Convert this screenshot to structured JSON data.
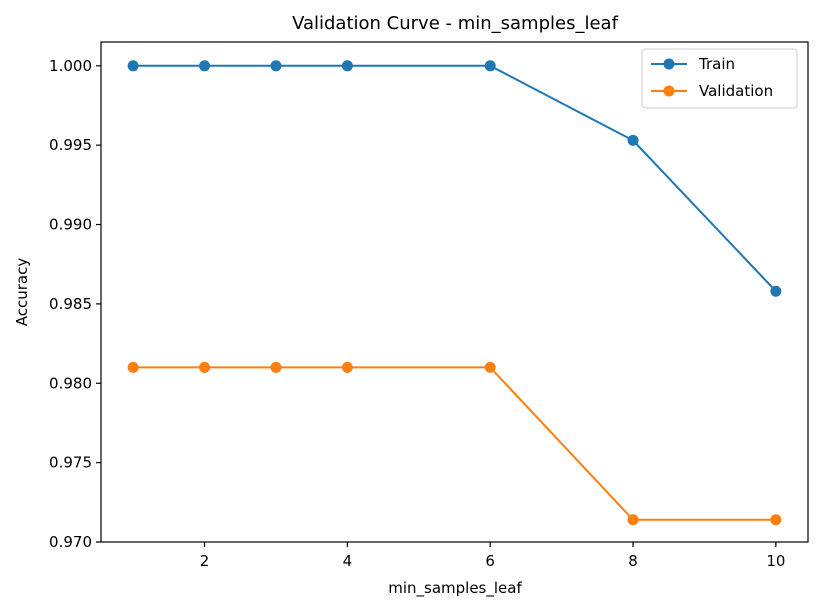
{
  "chart_data": {
    "type": "line",
    "title": "Validation Curve - min_samples_leaf",
    "xlabel": "min_samples_leaf",
    "ylabel": "Accuracy",
    "xlim": [
      0.55,
      10.45
    ],
    "ylim": [
      0.97,
      1.0015
    ],
    "x_ticks": [
      2,
      4,
      6,
      8,
      10
    ],
    "x_tick_labels": [
      "2",
      "4",
      "6",
      "8",
      "10"
    ],
    "y_ticks": [
      0.97,
      0.975,
      0.98,
      0.985,
      0.99,
      0.995,
      1.0
    ],
    "y_tick_labels": [
      "0.970",
      "0.975",
      "0.980",
      "0.985",
      "0.990",
      "0.995",
      "1.000"
    ],
    "grid": false,
    "legend_position": "top-right",
    "x": [
      1,
      2,
      3,
      4,
      6,
      8,
      10
    ],
    "series": [
      {
        "name": "Train",
        "color": "#1f77b4",
        "values": [
          1.0,
          1.0,
          1.0,
          1.0,
          1.0,
          0.9953,
          0.9858
        ]
      },
      {
        "name": "Validation",
        "color": "#ff7f0e",
        "values": [
          0.981,
          0.981,
          0.981,
          0.981,
          0.981,
          0.9714,
          0.9714
        ]
      }
    ]
  }
}
